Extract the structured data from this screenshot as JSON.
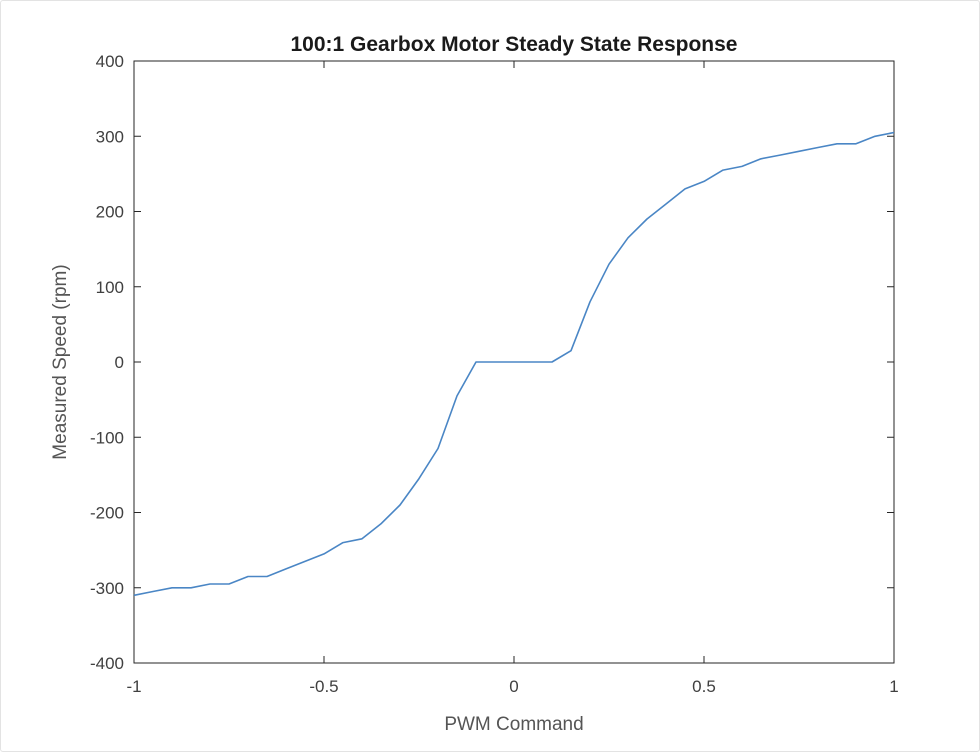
{
  "chart_data": {
    "type": "line",
    "title": "100:1 Gearbox Motor Steady State Response",
    "xlabel": "PWM Command",
    "ylabel": "Measured Speed (rpm)",
    "xlim": [
      -1,
      1
    ],
    "ylim": [
      -400,
      400
    ],
    "xticks": [
      -1,
      -0.5,
      0,
      0.5,
      1
    ],
    "xtick_labels": [
      "-1",
      "-0.5",
      "0",
      "0.5",
      "1"
    ],
    "yticks": [
      -400,
      -300,
      -200,
      -100,
      0,
      100,
      200,
      300,
      400
    ],
    "ytick_labels": [
      "-400",
      "-300",
      "-200",
      "-100",
      "0",
      "100",
      "200",
      "300",
      "400"
    ],
    "grid": false,
    "line_color": "#4a86c5",
    "series": [
      {
        "x": [
          -1,
          -0.95,
          -0.9,
          -0.85,
          -0.8,
          -0.75,
          -0.7,
          -0.65,
          -0.6,
          -0.55,
          -0.5,
          -0.45,
          -0.4,
          -0.35,
          -0.3,
          -0.25,
          -0.2,
          -0.15,
          -0.1,
          -0.05,
          0,
          0.05,
          0.1,
          0.15,
          0.2,
          0.25,
          0.3,
          0.35,
          0.4,
          0.45,
          0.5,
          0.55,
          0.6,
          0.65,
          0.7,
          0.75,
          0.8,
          0.85,
          0.9,
          0.95,
          1
        ],
        "y": [
          -310,
          -305,
          -300,
          -300,
          -295,
          -295,
          -285,
          -285,
          -275,
          -265,
          -255,
          -240,
          -235,
          -215,
          -190,
          -155,
          -115,
          -45,
          0,
          0,
          0,
          0,
          0,
          15,
          80,
          130,
          165,
          190,
          210,
          230,
          240,
          255,
          260,
          270,
          275,
          280,
          285,
          290,
          290,
          300,
          305
        ]
      }
    ]
  }
}
